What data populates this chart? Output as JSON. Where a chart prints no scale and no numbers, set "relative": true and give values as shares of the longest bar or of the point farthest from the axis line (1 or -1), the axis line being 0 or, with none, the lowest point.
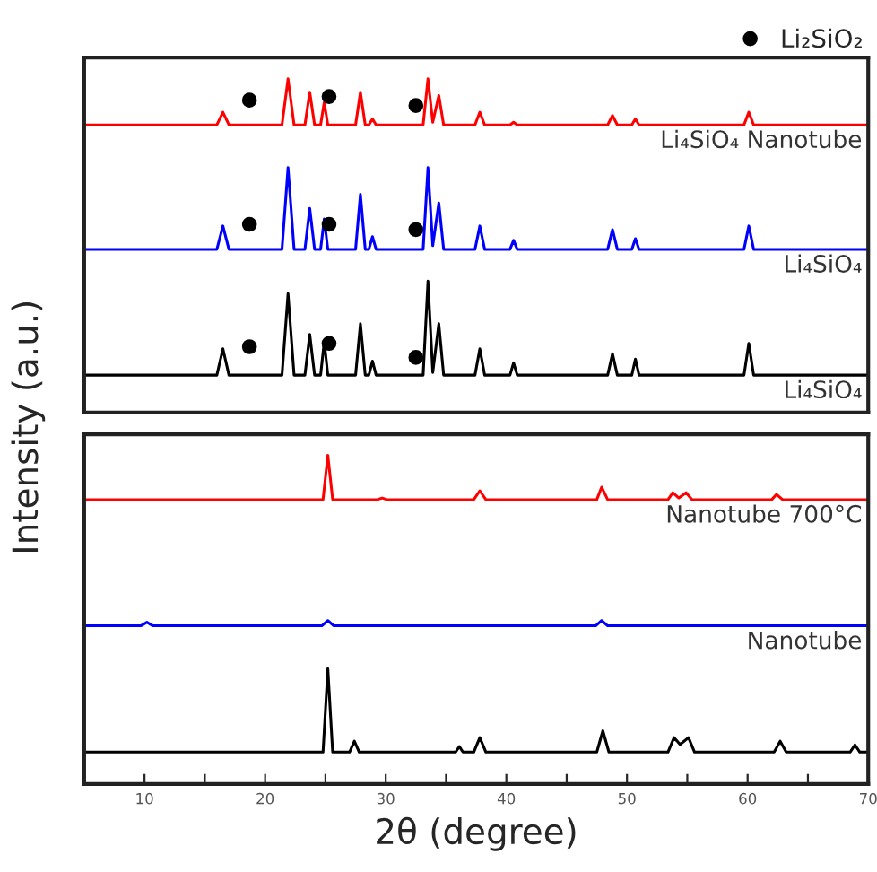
{
  "chart_data": [
    {
      "type": "line",
      "relative": true,
      "xlim": [
        5,
        70
      ],
      "tick_labels": false,
      "legend": "top right",
      "series": [
        {
          "name": "Li₄SiO₄ Nanotube",
          "color": "#ff0000",
          "x": [
            5,
            16.0,
            16.5,
            17.0,
            21.4,
            21.9,
            22.4,
            23.3,
            23.7,
            24.1,
            24.6,
            24.9,
            25.2,
            27.5,
            27.9,
            28.3,
            28.6,
            28.9,
            29.2,
            33.1,
            33.5,
            33.9,
            34.4,
            34.8,
            37.4,
            37.8,
            38.2,
            40.3,
            40.6,
            40.9,
            48.4,
            48.8,
            49.2,
            50.4,
            50.7,
            51.0,
            59.7,
            60.1,
            60.5,
            70
          ],
          "values": [
            0.862,
            0.862,
            0.9,
            0.862,
            0.862,
            1.0,
            0.862,
            0.862,
            0.96,
            0.862,
            0.862,
            0.93,
            0.862,
            0.862,
            0.96,
            0.862,
            0.862,
            0.88,
            0.862,
            0.862,
            1.0,
            0.87,
            0.95,
            0.862,
            0.862,
            0.9,
            0.862,
            0.862,
            0.87,
            0.862,
            0.862,
            0.89,
            0.862,
            0.862,
            0.88,
            0.862,
            0.862,
            0.9,
            0.862,
            0.862
          ]
        },
        {
          "name": "Li₄SiO₄",
          "color": "#0000ff",
          "x": [
            5,
            16.0,
            16.5,
            17.0,
            21.4,
            21.9,
            22.4,
            23.3,
            23.7,
            24.1,
            24.6,
            24.9,
            25.2,
            27.5,
            27.9,
            28.3,
            28.6,
            28.9,
            29.2,
            33.1,
            33.5,
            33.9,
            34.4,
            34.8,
            37.4,
            37.8,
            38.2,
            40.3,
            40.6,
            40.9,
            48.4,
            48.8,
            49.2,
            50.4,
            50.7,
            51.0,
            59.7,
            60.1,
            60.5,
            70
          ],
          "values": [
            0.489,
            0.489,
            0.559,
            0.489,
            0.489,
            0.734,
            0.489,
            0.489,
            0.612,
            0.489,
            0.489,
            0.58,
            0.489,
            0.489,
            0.654,
            0.489,
            0.489,
            0.527,
            0.489,
            0.489,
            0.734,
            0.5,
            0.628,
            0.489,
            0.489,
            0.559,
            0.489,
            0.489,
            0.516,
            0.489,
            0.489,
            0.548,
            0.489,
            0.489,
            0.521,
            0.489,
            0.489,
            0.559,
            0.489,
            0.489
          ]
        },
        {
          "name": "Li₄SiO₄",
          "color": "#000000",
          "x": [
            5,
            16.0,
            16.5,
            17.0,
            21.4,
            21.9,
            22.4,
            23.3,
            23.7,
            24.1,
            24.6,
            24.9,
            25.2,
            27.5,
            27.9,
            28.3,
            28.6,
            28.9,
            29.2,
            33.1,
            33.5,
            33.9,
            34.4,
            34.8,
            37.4,
            37.8,
            38.2,
            40.3,
            40.6,
            40.9,
            48.4,
            48.8,
            49.2,
            50.4,
            50.7,
            51.0,
            59.7,
            60.1,
            60.5,
            70
          ],
          "values": [
            0.112,
            0.112,
            0.191,
            0.112,
            0.112,
            0.356,
            0.112,
            0.112,
            0.234,
            0.112,
            0.112,
            0.213,
            0.112,
            0.112,
            0.266,
            0.112,
            0.112,
            0.154,
            0.112,
            0.112,
            0.394,
            0.12,
            0.266,
            0.112,
            0.112,
            0.191,
            0.112,
            0.112,
            0.149,
            0.112,
            0.112,
            0.176,
            0.112,
            0.112,
            0.16,
            0.112,
            0.112,
            0.207,
            0.112,
            0.112
          ]
        },
        {
          "name": "Li₂SiO₂",
          "type": "scatter",
          "marker": "circle",
          "color": "#000000",
          "x": [
            18.7,
            25.3,
            32.5,
            18.7,
            25.3,
            32.5,
            18.7,
            25.3,
            32.5
          ],
          "values": [
            0.936,
            0.947,
            0.92,
            0.564,
            0.564,
            0.548,
            0.197,
            0.207,
            0.165
          ]
        }
      ]
    },
    {
      "type": "line",
      "relative": true,
      "xlim": [
        5,
        70
      ],
      "tick_labels": "x",
      "xlabel": "2θ (degree)",
      "ylabel": "Intensity (a.u.)",
      "xticks": [
        10,
        {
          "value": 15,
          "label": null
        },
        20,
        {
          "value": 25,
          "label": null
        },
        30,
        {
          "value": 35,
          "label": null
        },
        40,
        {
          "value": 45,
          "label": null
        },
        50,
        {
          "value": 55,
          "label": null
        },
        60,
        {
          "value": 65,
          "label": null
        },
        70
      ],
      "series": [
        {
          "name": "Nanotube 700°C",
          "color": "#ff0000",
          "x": [
            5,
            24.8,
            25.2,
            25.6,
            29.3,
            29.7,
            30.1,
            37.3,
            37.8,
            38.3,
            47.5,
            47.9,
            48.4,
            53.4,
            53.8,
            54.3,
            54.9,
            55.4,
            62.0,
            62.4,
            62.9,
            70
          ],
          "values": [
            0.865,
            0.865,
            1.0,
            0.865,
            0.865,
            0.87,
            0.865,
            0.865,
            0.892,
            0.865,
            0.865,
            0.903,
            0.865,
            0.865,
            0.886,
            0.87,
            0.886,
            0.865,
            0.865,
            0.881,
            0.865,
            0.865
          ]
        },
        {
          "name": "Nanotube",
          "color": "#0000ff",
          "x": [
            5,
            9.7,
            10.2,
            10.7,
            24.7,
            25.2,
            25.7,
            47.4,
            47.9,
            48.4,
            70
          ],
          "values": [
            0.481,
            0.481,
            0.492,
            0.481,
            0.481,
            0.497,
            0.481,
            0.481,
            0.497,
            0.481,
            0.481
          ]
        },
        {
          "color": "#000000",
          "x": [
            5,
            24.8,
            25.2,
            25.6,
            27.0,
            27.4,
            27.8,
            35.8,
            36.1,
            36.4,
            37.3,
            37.8,
            38.3,
            47.5,
            48.0,
            48.5,
            53.4,
            53.9,
            54.4,
            55.1,
            55.6,
            62.2,
            62.7,
            63.2,
            68.5,
            68.9,
            69.3,
            70
          ],
          "values": [
            0.097,
            0.097,
            0.351,
            0.097,
            0.097,
            0.13,
            0.097,
            0.097,
            0.114,
            0.097,
            0.097,
            0.141,
            0.097,
            0.097,
            0.162,
            0.097,
            0.097,
            0.141,
            0.12,
            0.141,
            0.097,
            0.097,
            0.13,
            0.097,
            0.097,
            0.119,
            0.097,
            0.097
          ]
        }
      ]
    }
  ]
}
